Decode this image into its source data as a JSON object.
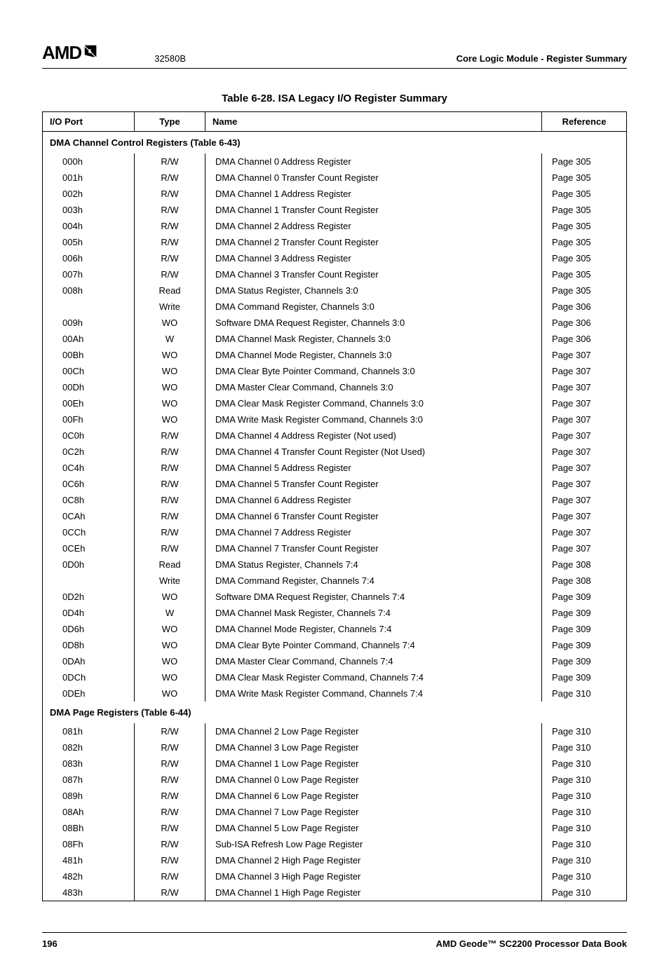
{
  "header": {
    "logo_text": "AMD",
    "doc_code": "32580B",
    "section_title": "Core Logic Module - Register Summary"
  },
  "table": {
    "title": "Table 6-28.  ISA Legacy I/O Register Summary",
    "columns": {
      "port": "I/O Port",
      "type": "Type",
      "name": "Name",
      "ref": "Reference"
    },
    "sections": [
      {
        "heading": "DMA Channel Control Registers (Table 6-43)",
        "rows": [
          {
            "port": "000h",
            "type": "R/W",
            "name": "DMA Channel 0 Address Register",
            "ref": "Page 305"
          },
          {
            "port": "001h",
            "type": "R/W",
            "name": "DMA Channel 0 Transfer Count Register",
            "ref": "Page 305"
          },
          {
            "port": "002h",
            "type": "R/W",
            "name": "DMA Channel 1 Address Register",
            "ref": "Page 305"
          },
          {
            "port": "003h",
            "type": "R/W",
            "name": "DMA Channel 1 Transfer Count Register",
            "ref": "Page 305"
          },
          {
            "port": "004h",
            "type": "R/W",
            "name": "DMA Channel 2 Address Register",
            "ref": "Page 305"
          },
          {
            "port": "005h",
            "type": "R/W",
            "name": "DMA Channel 2 Transfer Count Register",
            "ref": "Page 305"
          },
          {
            "port": "006h",
            "type": "R/W",
            "name": "DMA Channel 3 Address Register",
            "ref": "Page 305"
          },
          {
            "port": "007h",
            "type": "R/W",
            "name": "DMA Channel 3 Transfer Count Register",
            "ref": "Page 305"
          },
          {
            "port": "008h",
            "type": "Read",
            "name": "DMA Status Register, Channels 3:0",
            "ref": "Page 305"
          },
          {
            "port": "",
            "type": "Write",
            "name": "DMA Command Register, Channels 3:0",
            "ref": "Page 306"
          },
          {
            "port": "009h",
            "type": "WO",
            "name": "Software DMA Request Register, Channels 3:0",
            "ref": "Page 306"
          },
          {
            "port": "00Ah",
            "type": "W",
            "name": "DMA Channel Mask Register, Channels 3:0",
            "ref": "Page 306"
          },
          {
            "port": "00Bh",
            "type": "WO",
            "name": "DMA Channel Mode Register, Channels 3:0",
            "ref": "Page 307"
          },
          {
            "port": "00Ch",
            "type": "WO",
            "name": "DMA Clear Byte Pointer Command, Channels 3:0",
            "ref": "Page 307"
          },
          {
            "port": "00Dh",
            "type": "WO",
            "name": "DMA Master Clear Command, Channels 3:0",
            "ref": "Page 307"
          },
          {
            "port": "00Eh",
            "type": "WO",
            "name": "DMA Clear Mask Register Command, Channels 3:0",
            "ref": "Page 307"
          },
          {
            "port": "00Fh",
            "type": "WO",
            "name": "DMA Write Mask Register Command, Channels 3:0",
            "ref": "Page 307"
          },
          {
            "port": "0C0h",
            "type": "R/W",
            "name": "DMA Channel 4 Address Register (Not used)",
            "ref": "Page 307"
          },
          {
            "port": "0C2h",
            "type": "R/W",
            "name": "DMA Channel 4 Transfer Count Register (Not Used)",
            "ref": "Page 307"
          },
          {
            "port": "0C4h",
            "type": "R/W",
            "name": "DMA Channel 5 Address Register",
            "ref": "Page 307"
          },
          {
            "port": "0C6h",
            "type": "R/W",
            "name": "DMA Channel 5 Transfer Count Register",
            "ref": "Page 307"
          },
          {
            "port": "0C8h",
            "type": "R/W",
            "name": "DMA Channel 6 Address Register",
            "ref": "Page 307"
          },
          {
            "port": "0CAh",
            "type": "R/W",
            "name": "DMA Channel 6 Transfer Count Register",
            "ref": "Page 307"
          },
          {
            "port": "0CCh",
            "type": "R/W",
            "name": "DMA Channel 7 Address Register",
            "ref": "Page 307"
          },
          {
            "port": "0CEh",
            "type": "R/W",
            "name": "DMA Channel 7 Transfer Count Register",
            "ref": "Page 307"
          },
          {
            "port": "0D0h",
            "type": "Read",
            "name": "DMA Status Register, Channels 7:4",
            "ref": "Page 308"
          },
          {
            "port": "",
            "type": "Write",
            "name": "DMA Command Register, Channels 7:4",
            "ref": "Page 308"
          },
          {
            "port": "0D2h",
            "type": "WO",
            "name": "Software DMA Request Register, Channels 7:4",
            "ref": "Page 309"
          },
          {
            "port": "0D4h",
            "type": "W",
            "name": "DMA Channel Mask Register, Channels 7:4",
            "ref": "Page 309"
          },
          {
            "port": "0D6h",
            "type": "WO",
            "name": "DMA Channel Mode Register, Channels 7:4",
            "ref": "Page 309"
          },
          {
            "port": "0D8h",
            "type": "WO",
            "name": "DMA Clear Byte Pointer Command, Channels 7:4",
            "ref": "Page 309"
          },
          {
            "port": "0DAh",
            "type": "WO",
            "name": "DMA Master Clear Command, Channels 7:4",
            "ref": "Page 309"
          },
          {
            "port": "0DCh",
            "type": "WO",
            "name": "DMA Clear Mask Register Command, Channels 7:4",
            "ref": "Page 309"
          },
          {
            "port": "0DEh",
            "type": "WO",
            "name": "DMA Write Mask Register Command, Channels 7:4",
            "ref": "Page 310"
          }
        ]
      },
      {
        "heading": "DMA Page Registers (Table 6-44)",
        "rows": [
          {
            "port": "081h",
            "type": "R/W",
            "name": "DMA Channel 2 Low Page Register",
            "ref": "Page 310"
          },
          {
            "port": "082h",
            "type": "R/W",
            "name": "DMA Channel 3 Low Page Register",
            "ref": "Page 310"
          },
          {
            "port": "083h",
            "type": "R/W",
            "name": "DMA Channel 1 Low Page Register",
            "ref": "Page 310"
          },
          {
            "port": "087h",
            "type": "R/W",
            "name": "DMA Channel 0 Low Page Register",
            "ref": "Page 310"
          },
          {
            "port": "089h",
            "type": "R/W",
            "name": "DMA Channel 6 Low Page Register",
            "ref": "Page 310"
          },
          {
            "port": "08Ah",
            "type": "R/W",
            "name": "DMA Channel 7 Low Page Register",
            "ref": "Page 310"
          },
          {
            "port": "08Bh",
            "type": "R/W",
            "name": "DMA Channel 5 Low Page Register",
            "ref": "Page 310"
          },
          {
            "port": "08Fh",
            "type": "R/W",
            "name": "Sub-ISA Refresh Low Page Register",
            "ref": "Page 310"
          },
          {
            "port": "481h",
            "type": "R/W",
            "name": "DMA Channel 2 High Page Register",
            "ref": "Page 310"
          },
          {
            "port": "482h",
            "type": "R/W",
            "name": "DMA Channel 3 High Page Register",
            "ref": "Page 310"
          },
          {
            "port": "483h",
            "type": "R/W",
            "name": "DMA Channel 1 High Page Register",
            "ref": "Page 310"
          }
        ]
      }
    ]
  },
  "footer": {
    "page_number": "196",
    "book_title": "AMD Geode™ SC2200  Processor Data Book"
  }
}
